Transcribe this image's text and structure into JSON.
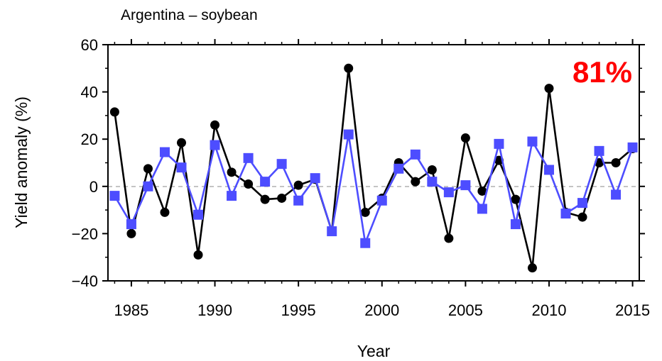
{
  "chart_data": {
    "type": "line",
    "title": "Argentina – soybean",
    "xlabel": "Year",
    "ylabel": "Yield anomaly (%)",
    "xlim": [
      1983.6,
      2015.4
    ],
    "ylim": [
      -40,
      60
    ],
    "xticks": [
      1985,
      1990,
      1995,
      2000,
      2005,
      2010,
      2015
    ],
    "xtick_labels": [
      "1985",
      "1990",
      "1995",
      "2000",
      "2005",
      "2010",
      "2015"
    ],
    "yticks": [
      -40,
      -20,
      0,
      20,
      40,
      60
    ],
    "ytick_labels": [
      "−40",
      "−20",
      "0",
      "20",
      "40",
      "60"
    ],
    "grid": false,
    "zero_reference_line": true,
    "annotation": {
      "text": "81%",
      "color": "#ff0000"
    },
    "x": [
      1984,
      1985,
      1986,
      1987,
      1988,
      1989,
      1990,
      1991,
      1992,
      1993,
      1994,
      1995,
      1996,
      1997,
      1998,
      1999,
      2000,
      2001,
      2002,
      2003,
      2004,
      2005,
      2006,
      2007,
      2008,
      2009,
      2010,
      2011,
      2012,
      2013,
      2014,
      2015
    ],
    "series": [
      {
        "color": "#000000",
        "marker": "circle",
        "values": [
          31.5,
          -20,
          7.5,
          -11,
          18.5,
          -29,
          26,
          6,
          1,
          -5.5,
          -5,
          0.5,
          3,
          -19,
          50,
          -11,
          -5,
          10,
          2,
          7,
          -22,
          20.5,
          -2,
          11,
          -5.5,
          -34.5,
          41.5,
          -11,
          -13,
          10,
          10,
          16
        ]
      },
      {
        "color": "#4d4dff",
        "marker": "square",
        "values": [
          -4,
          -16,
          0,
          14.5,
          8,
          -12,
          17.5,
          -4,
          12,
          2,
          9.5,
          -6,
          3.5,
          -19,
          22,
          -24,
          -6,
          7.5,
          13.5,
          2,
          -2.5,
          0.5,
          -9.5,
          18,
          -16,
          19,
          7,
          -11.5,
          -7,
          15,
          -3.5,
          16.5
        ]
      }
    ]
  }
}
